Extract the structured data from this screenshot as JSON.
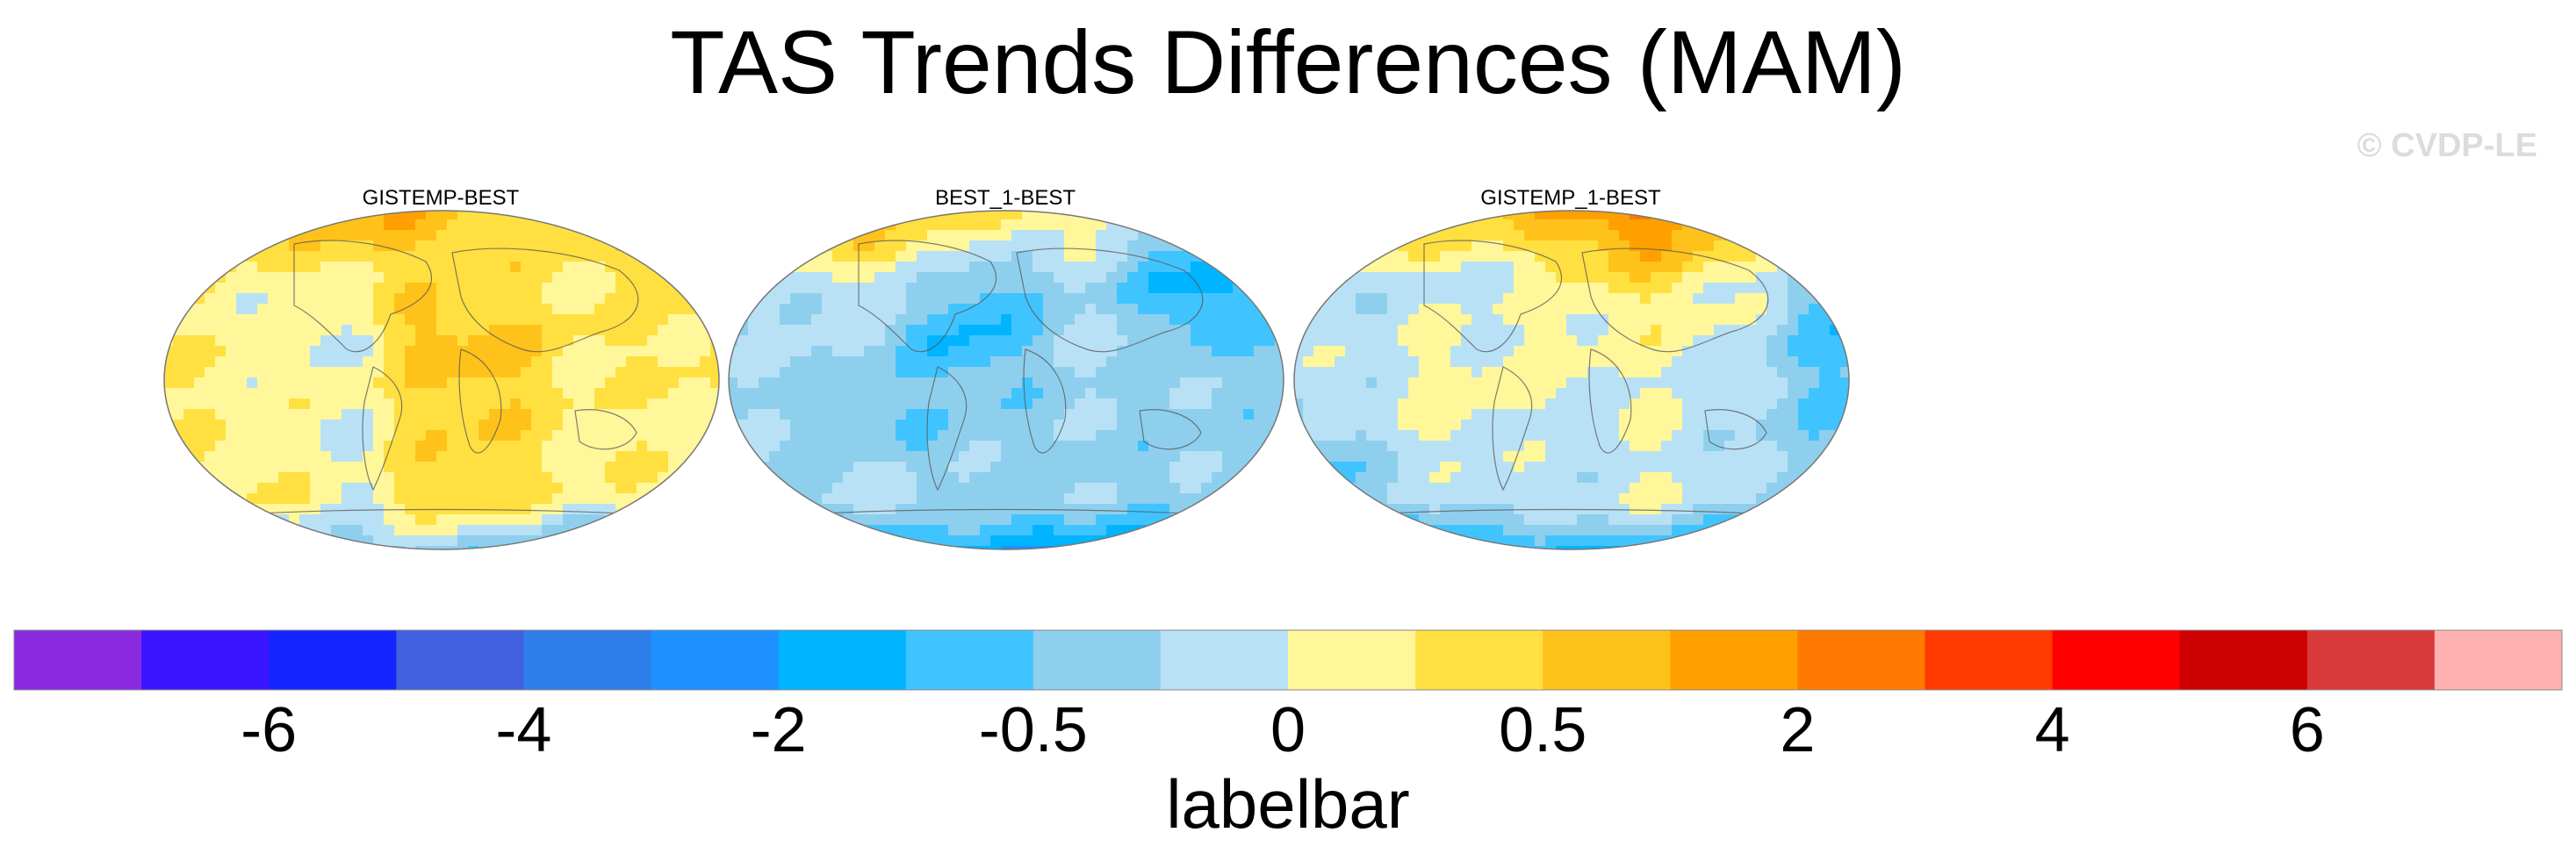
{
  "page": {
    "title": "TAS Trends Differences (MAM)",
    "watermark": "© CVDP-LE"
  },
  "chart_data": [
    {
      "type": "heatmap",
      "title": "GISTEMP-BEST",
      "projection": "robinson-like global map",
      "dominant_sign": "positive"
    },
    {
      "type": "heatmap",
      "title": "BEST_1-BEST",
      "projection": "robinson-like global map",
      "dominant_sign": "negative"
    },
    {
      "type": "heatmap",
      "title": "GISTEMP_1-BEST",
      "projection": "robinson-like global map",
      "dominant_sign": "negative"
    }
  ],
  "colorbar": {
    "title": "labelbar",
    "colors": [
      "#8a2be2",
      "#3a14ff",
      "#1424ff",
      "#4160df",
      "#2e7de8",
      "#1e90ff",
      "#00b4ff",
      "#40c4ff",
      "#8ecfee",
      "#b9e1f6",
      "#fff79a",
      "#ffe040",
      "#ffc21a",
      "#ffa000",
      "#ff7a00",
      "#ff3a00",
      "#ff0000",
      "#cc0000",
      "#d93a3a",
      "#ffb0b0"
    ],
    "tick_labels": [
      {
        "boundary": 2,
        "label": "-6"
      },
      {
        "boundary": 4,
        "label": "-4"
      },
      {
        "boundary": 6,
        "label": "-2"
      },
      {
        "boundary": 8,
        "label": "-0.5"
      },
      {
        "boundary": 10,
        "label": "0"
      },
      {
        "boundary": 12,
        "label": "0.5"
      },
      {
        "boundary": 14,
        "label": "2"
      },
      {
        "boundary": 16,
        "label": "4"
      },
      {
        "boundary": 18,
        "label": "6"
      }
    ]
  }
}
